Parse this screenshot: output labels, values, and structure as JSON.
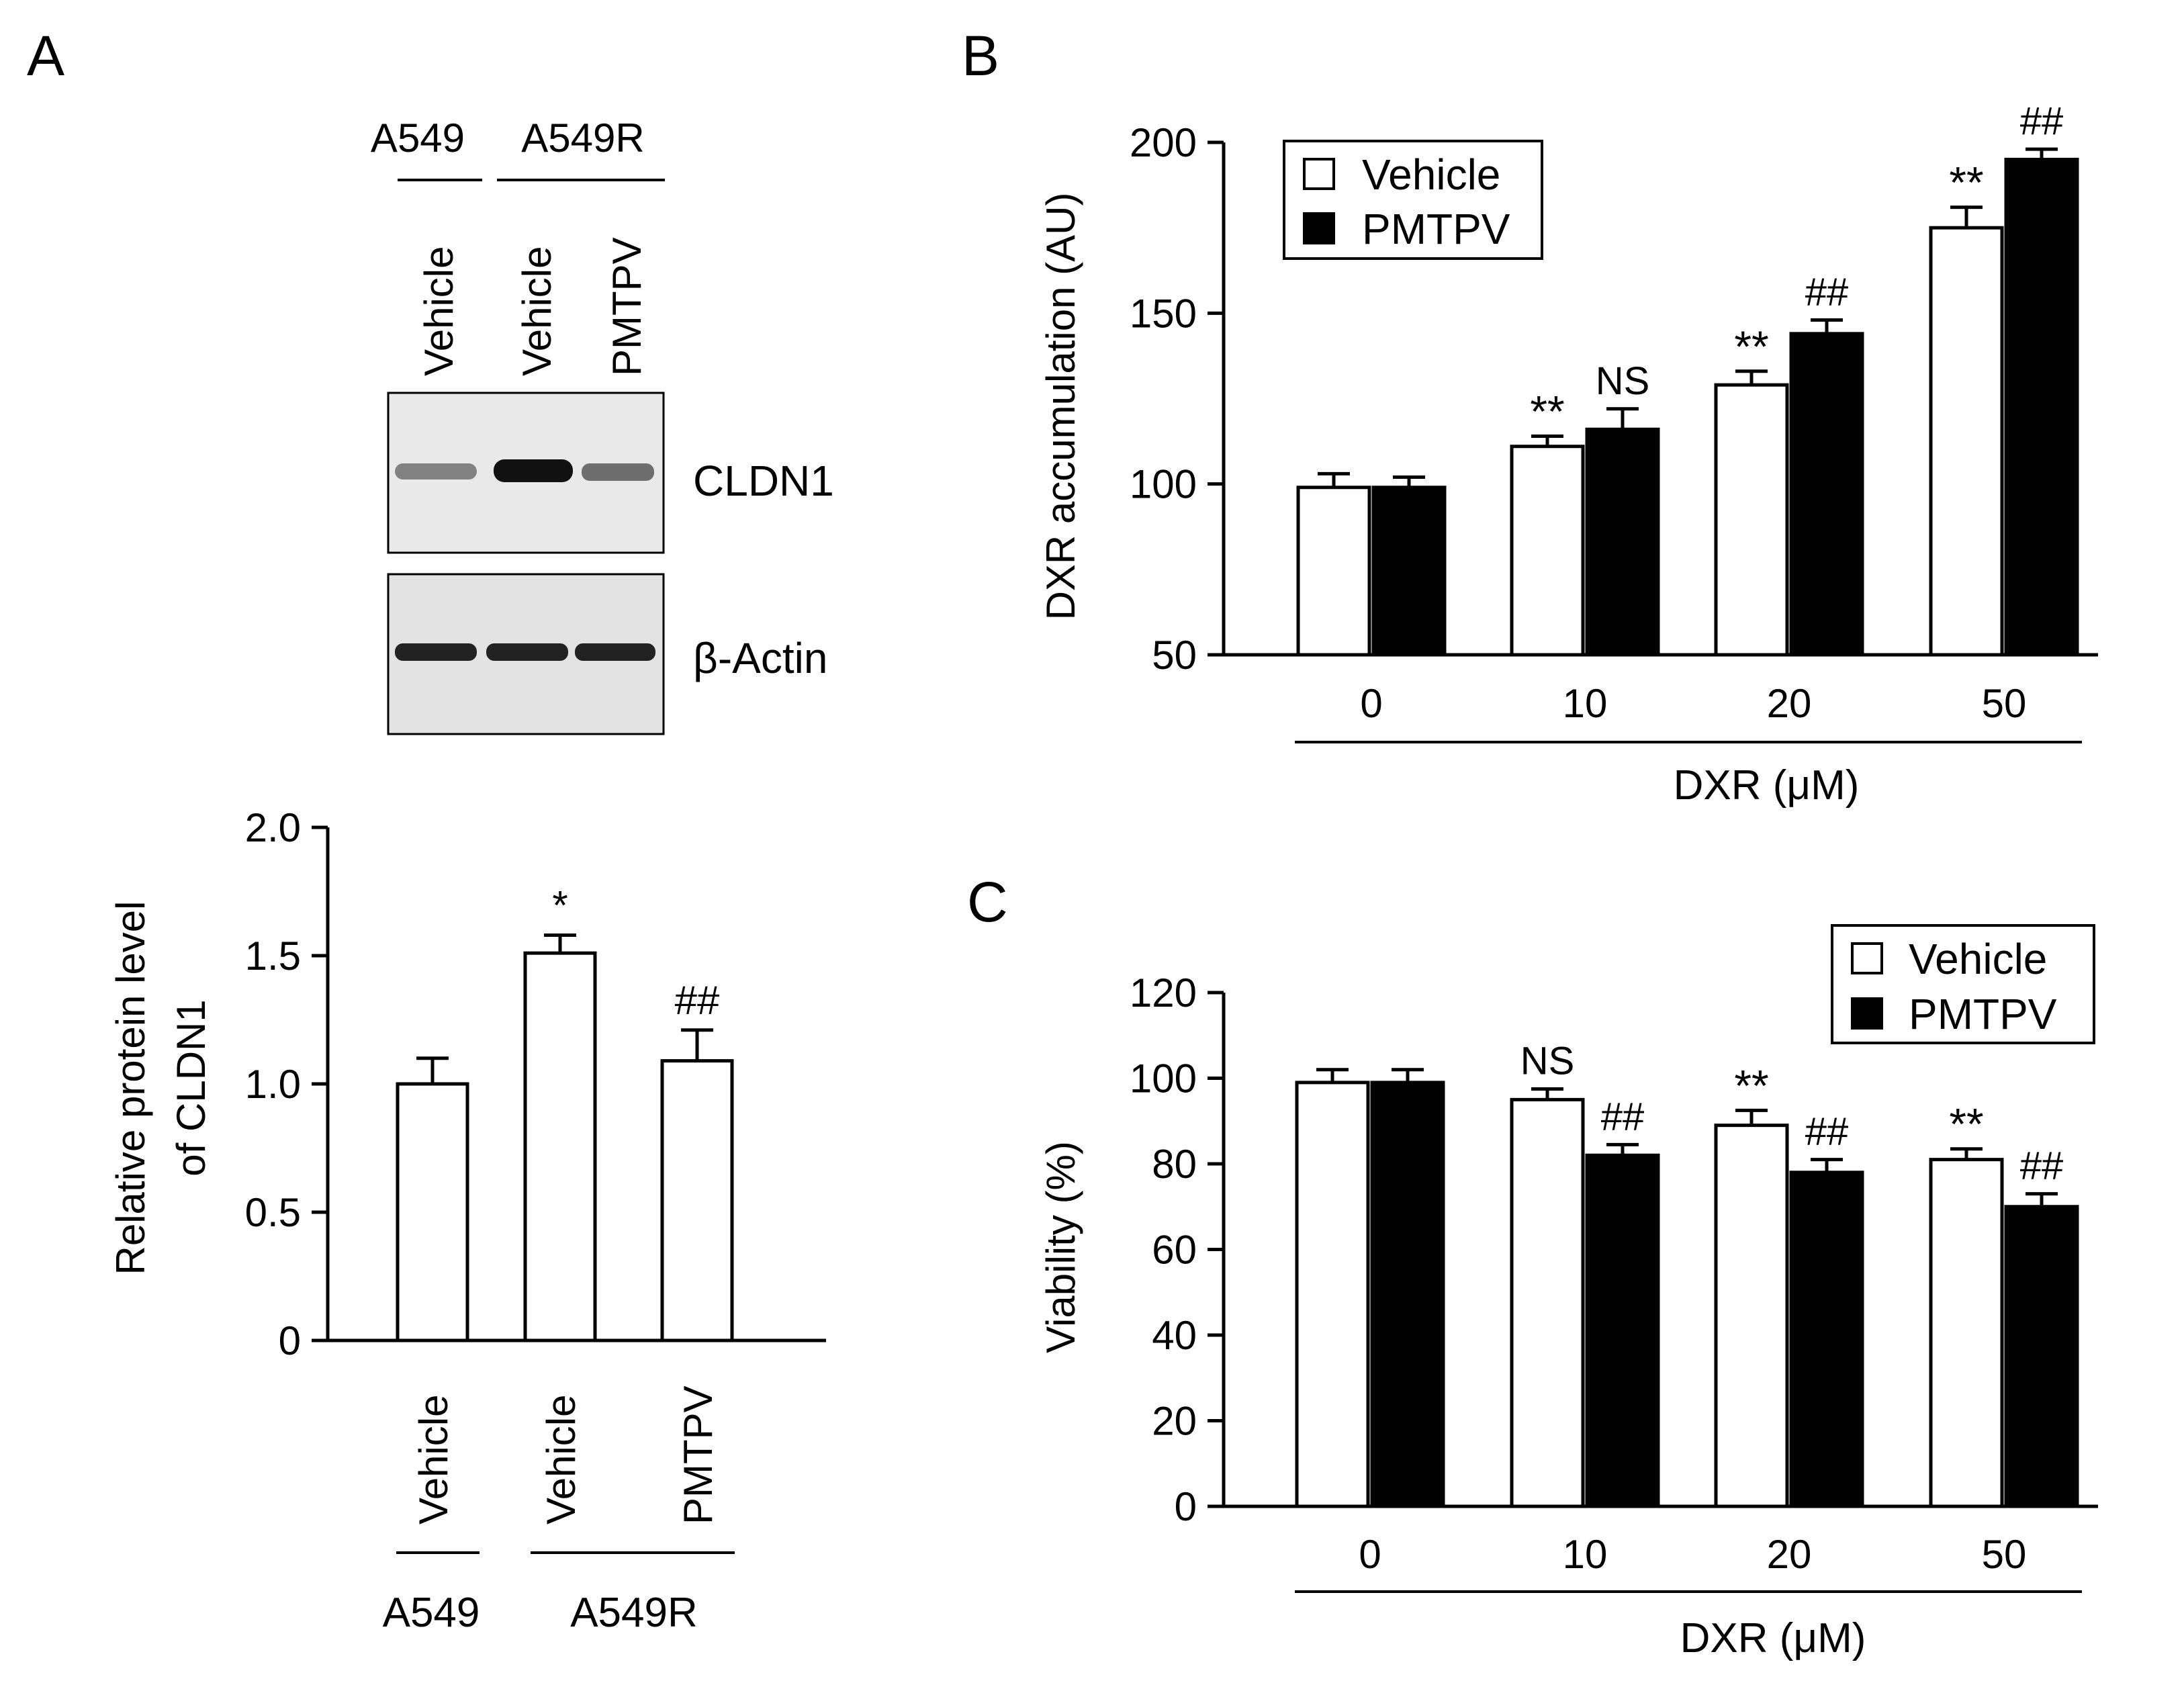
{
  "panel_labels": {
    "a": "A",
    "b": "B",
    "c": "C"
  },
  "blot": {
    "groups": [
      "A549",
      "A549R"
    ],
    "lanes": [
      "Vehicle",
      "Vehicle",
      "PMTPV"
    ],
    "bands": [
      "CLDN1",
      "β-Actin"
    ],
    "relative_intensity": {
      "CLDN1": [
        0.55,
        0.95,
        0.6
      ],
      "β-Actin": [
        0.9,
        0.9,
        0.9
      ]
    }
  },
  "legend": {
    "vehicle": "Vehicle",
    "pmtpv": "PMTPV"
  },
  "chart_data": [
    {
      "id": "A",
      "type": "bar",
      "ylabel": [
        "Relative protein level",
        "of CLDN1"
      ],
      "categories": [
        "Vehicle",
        "Vehicle",
        "PMTPV"
      ],
      "groups": [
        {
          "label": "A549",
          "members": [
            0
          ]
        },
        {
          "label": "A549R",
          "members": [
            1,
            2
          ]
        }
      ],
      "values": [
        1.0,
        1.51,
        1.09
      ],
      "errors": [
        0.1,
        0.07,
        0.12
      ],
      "fills": [
        "white",
        "white",
        "white"
      ],
      "annotations": [
        "",
        "*",
        "##"
      ],
      "ylim": [
        0,
        2.0
      ],
      "yticks": [
        0,
        0.5,
        1.0,
        1.5,
        2.0
      ],
      "ytick_labels": [
        "0",
        "0.5",
        "1.0",
        "1.5",
        "2.0"
      ]
    },
    {
      "id": "B",
      "type": "bar",
      "ylabel": "DXR accumulation  (AU)",
      "xlabel": "DXR  (μM)",
      "categories": [
        "0",
        "10",
        "20",
        "50"
      ],
      "series": [
        {
          "name": "Vehicle",
          "fill": "white",
          "values": [
            99,
            111,
            129,
            175
          ],
          "errors": [
            4,
            3,
            4,
            6
          ],
          "annotations": [
            "",
            "**",
            "**",
            "**"
          ]
        },
        {
          "name": "PMTPV",
          "fill": "black",
          "values": [
            99,
            116,
            144,
            195
          ],
          "errors": [
            3,
            6,
            4,
            3
          ],
          "annotations": [
            "",
            "NS",
            "##",
            "##"
          ]
        }
      ],
      "ylim": [
        50,
        200
      ],
      "yticks": [
        50,
        100,
        150,
        200
      ],
      "legend_position": "top-left"
    },
    {
      "id": "C",
      "type": "bar",
      "ylabel": "Viability  (%)",
      "xlabel": "DXR  (μM)",
      "categories": [
        "0",
        "10",
        "20",
        "50"
      ],
      "series": [
        {
          "name": "Vehicle",
          "fill": "white",
          "values": [
            99,
            95,
            89,
            81
          ],
          "errors": [
            3,
            2.5,
            3.5,
            2.5
          ],
          "annotations": [
            "",
            "NS",
            "**",
            "**"
          ]
        },
        {
          "name": "PMTPV",
          "fill": "black",
          "values": [
            99,
            82,
            78,
            70
          ],
          "errors": [
            3,
            2.5,
            3,
            3
          ],
          "annotations": [
            "",
            "##",
            "##",
            "##"
          ]
        }
      ],
      "ylim": [
        0,
        120
      ],
      "yticks": [
        0,
        20,
        40,
        60,
        80,
        100,
        120
      ],
      "legend_position": "top-right"
    }
  ]
}
